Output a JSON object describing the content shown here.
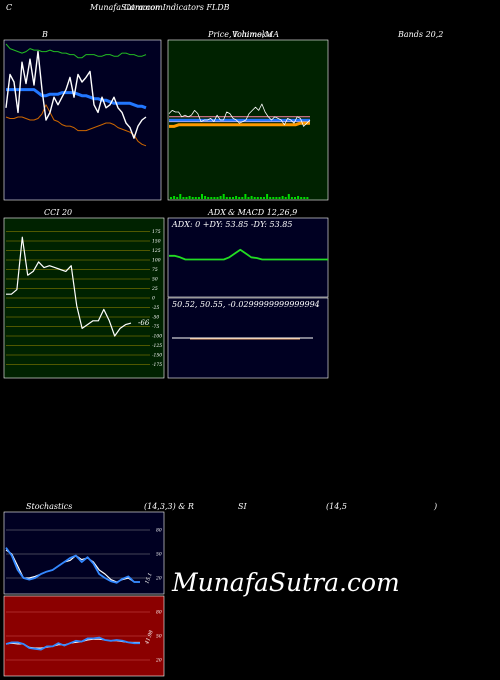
{
  "header": {
    "left": "C",
    "center": "MunafaSutra.com",
    "center_overlap": "Common Indicators FLDB"
  },
  "labels": {
    "bollinger_b": "B",
    "price_title": "Price,",
    "price_overlap_a": "Volume,",
    "price_overlap_b": "Ichimoku",
    "price_ma": "MA",
    "bands": "Bands 20,2",
    "cci": "CCI 20",
    "adx_macd_a": "ADX",
    "adx_macd_b": "& MACD 12,26,9",
    "stoch_a": "Stochastics",
    "stoch_b": "(14,3,3) & R",
    "rsi_a": "SI",
    "rsi_b": "(14,5",
    "rsi_c": ")"
  },
  "adx": {
    "text": "ADX: 0  +DY: 53.85 -DY: 53.85"
  },
  "macd": {
    "text": "50.52,  50.55,  -0.0299999999999994"
  },
  "watermark": "MunafaSutra.com",
  "chart_data": [
    {
      "type": "line",
      "panel": "bollinger",
      "title": "B",
      "series": [
        {
          "values": [
            100,
            97,
            96,
            95,
            94,
            95,
            97,
            96,
            96,
            95,
            95,
            96,
            95,
            95,
            94,
            94,
            93,
            93,
            91,
            91,
            93,
            93,
            93,
            92,
            92,
            93,
            93,
            92,
            92,
            94,
            94,
            93,
            93,
            92,
            92,
            93
          ]
        },
        {
          "values": [
            70,
            70,
            70,
            70,
            70,
            70,
            70,
            70,
            68,
            66,
            66,
            67,
            67,
            67,
            68,
            68,
            68,
            68,
            67,
            66,
            66,
            65,
            64,
            64,
            63,
            63,
            62,
            61,
            61,
            61,
            61,
            61,
            60,
            59,
            59,
            58
          ]
        },
        {
          "values": [
            52,
            51,
            51,
            52,
            52,
            51,
            50,
            50,
            51,
            54,
            60,
            55,
            50,
            49,
            47,
            46,
            46,
            45,
            43,
            43,
            43,
            44,
            45,
            46,
            47,
            48,
            48,
            47,
            45,
            44,
            43,
            42,
            40,
            36,
            34,
            33
          ]
        },
        {
          "values": [
            58,
            80,
            75,
            55,
            88,
            74,
            90,
            73,
            95,
            70,
            50,
            55,
            65,
            60,
            65,
            70,
            78,
            65,
            80,
            75,
            78,
            82,
            60,
            55,
            65,
            58,
            60,
            65,
            58,
            55,
            48,
            45,
            38,
            46,
            50,
            52
          ]
        }
      ]
    },
    {
      "type": "line",
      "panel": "price",
      "title": "Price, Volume, Ichimoku MA",
      "series": [
        {
          "values": [
            54,
            56,
            55,
            55,
            52,
            53,
            52,
            53,
            56,
            54,
            49,
            50,
            50,
            51,
            49,
            53,
            50,
            50,
            55,
            54,
            51,
            50,
            48,
            49,
            50,
            54,
            56,
            58,
            56,
            60,
            55,
            52,
            50,
            52,
            51,
            50,
            47,
            51,
            50,
            48,
            52,
            51,
            46,
            48,
            50
          ]
        },
        {
          "values": [
            50,
            50,
            50,
            50,
            50,
            50,
            50,
            50,
            50,
            50,
            50,
            50,
            50,
            50,
            50,
            50,
            50,
            50,
            50,
            50,
            50,
            50,
            50,
            50,
            50,
            50,
            50,
            50,
            50,
            50
          ]
        },
        {
          "values": [
            49,
            49,
            49,
            49,
            49,
            49,
            49,
            49,
            49,
            49,
            49,
            49,
            49,
            49,
            49,
            49,
            49,
            49,
            49,
            49,
            49,
            49,
            49,
            49,
            49,
            49,
            49,
            49,
            49,
            49
          ]
        },
        {
          "values": [
            52,
            52,
            52,
            52,
            52,
            52,
            52,
            52,
            52,
            52,
            52,
            52,
            52,
            52,
            52,
            52,
            52,
            52,
            52,
            52,
            52,
            52,
            52,
            52,
            52,
            52,
            52,
            52,
            52,
            52
          ]
        },
        {
          "values": [
            46,
            46,
            47,
            47,
            47,
            47,
            47,
            47,
            47,
            47,
            47,
            47,
            47,
            47,
            47,
            47,
            47,
            47,
            47,
            47,
            47,
            47,
            47,
            47,
            47,
            47,
            47,
            48,
            48,
            48
          ]
        }
      ]
    },
    {
      "type": "line",
      "panel": "cci",
      "title": "CCI 20",
      "yticks": [
        175,
        150,
        125,
        100,
        75,
        50,
        25,
        0,
        -25,
        -50,
        -75,
        -100,
        -125,
        -150,
        -175
      ],
      "last_label": "-66",
      "series": [
        {
          "values": [
            10,
            10,
            22,
            160,
            60,
            70,
            95,
            80,
            85,
            80,
            75,
            70,
            85,
            -20,
            -80,
            -70,
            -60,
            -60,
            -30,
            -60,
            -100,
            -80,
            -70,
            -66
          ]
        }
      ]
    },
    {
      "type": "line",
      "panel": "adx",
      "series": [
        {
          "values": [
            55,
            55,
            53,
            50,
            50,
            50,
            50,
            50,
            50,
            50,
            50,
            53,
            58,
            63,
            58,
            53,
            52,
            50,
            50,
            50,
            50,
            50,
            50,
            50,
            50,
            50,
            50,
            50,
            50,
            50
          ]
        }
      ]
    },
    {
      "type": "line",
      "panel": "stochastics",
      "title": "Stochastics (14,3,3) & R",
      "yticks": [
        80,
        50,
        20
      ],
      "last_label": "15.1",
      "series": [
        {
          "values": [
            55,
            50,
            35,
            20,
            20,
            22,
            25,
            28,
            30,
            35,
            40,
            42,
            48,
            43,
            45,
            40,
            30,
            25,
            18,
            15,
            18,
            20,
            15,
            15
          ]
        },
        {
          "values": [
            58,
            48,
            30,
            20,
            18,
            20,
            25,
            28,
            30,
            35,
            40,
            45,
            48,
            40,
            46,
            38,
            25,
            20,
            16,
            14,
            19,
            22,
            15,
            15
          ]
        }
      ]
    },
    {
      "type": "line",
      "panel": "rsi",
      "title": "SI (14,5 )",
      "yticks": [
        80,
        50,
        20
      ],
      "last_label": "41.98",
      "series": [
        {
          "values": [
            40,
            42,
            42,
            40,
            35,
            34,
            33,
            37,
            37,
            41,
            38,
            41,
            44,
            43,
            47,
            47,
            48,
            45,
            44,
            45,
            44,
            42,
            41,
            41
          ]
        },
        {
          "values": [
            40,
            41,
            40,
            40,
            36,
            35,
            35,
            36,
            37,
            39,
            39,
            41,
            42,
            43,
            45,
            46,
            46,
            45,
            44,
            44,
            43,
            42,
            42,
            42
          ]
        }
      ]
    }
  ]
}
